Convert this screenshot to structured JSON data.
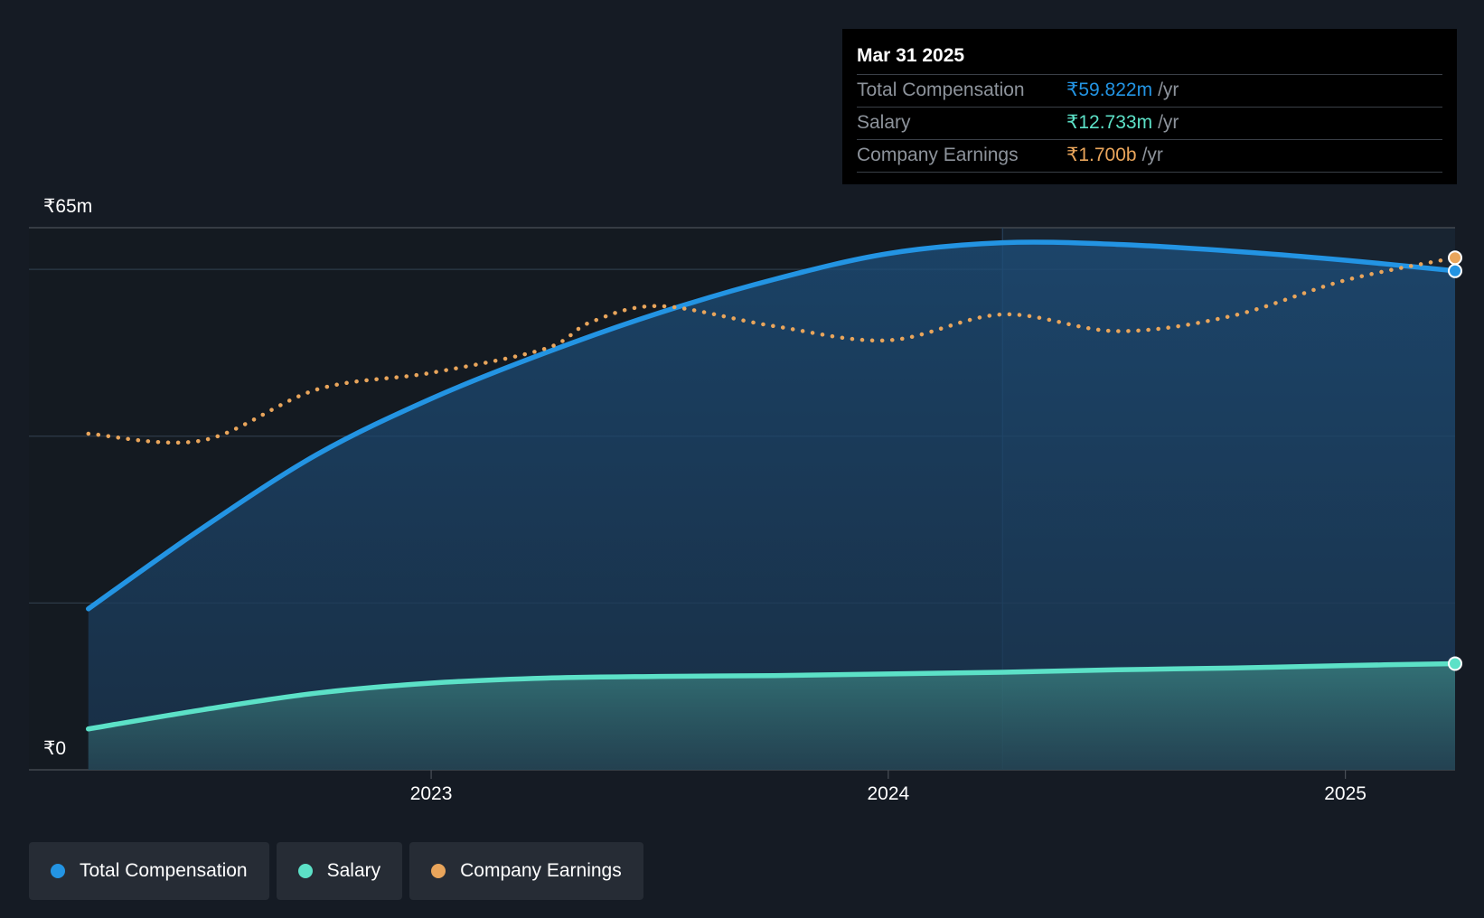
{
  "tooltip": {
    "date": "Mar 31 2025",
    "rows": [
      {
        "label": "Total Compensation",
        "value": "₹59.822m",
        "unit": "/yr",
        "color": "#2394e3"
      },
      {
        "label": "Salary",
        "value": "₹12.733m",
        "unit": "/yr",
        "color": "#5ce1c7"
      },
      {
        "label": "Company Earnings",
        "value": "₹1.700b",
        "unit": "/yr",
        "color": "#e9a55b"
      }
    ]
  },
  "legend": [
    {
      "label": "Total Compensation",
      "color": "#2394e3"
    },
    {
      "label": "Salary",
      "color": "#5ce1c7"
    },
    {
      "label": "Company Earnings",
      "color": "#e9a55b"
    }
  ],
  "chart_data": {
    "type": "line",
    "y_top_label": "₹65m",
    "y_bottom_label": "₹0",
    "ylim": [
      0,
      65
    ],
    "xlim": [
      2022.12,
      2025.24
    ],
    "x_ticks": [
      {
        "label": "2023",
        "value": 2023.0
      },
      {
        "label": "2024",
        "value": 2024.0
      },
      {
        "label": "2025",
        "value": 2025.0
      }
    ],
    "highlight_start_x": 2024.25,
    "series": [
      {
        "name": "Total Compensation",
        "color": "#2394e3",
        "fill": true,
        "style": "solid",
        "end_marker": true,
        "x": [
          2022.25,
          2022.5,
          2022.75,
          2023.0,
          2023.25,
          2023.5,
          2023.75,
          2024.0,
          2024.25,
          2024.5,
          2024.75,
          2025.0,
          2025.24
        ],
        "y": [
          19.3,
          29.0,
          37.8,
          44.5,
          50.0,
          54.8,
          58.8,
          61.9,
          63.2,
          63.0,
          62.2,
          61.1,
          59.822
        ]
      },
      {
        "name": "Salary",
        "color": "#5ce1c7",
        "fill": true,
        "style": "solid",
        "end_marker": true,
        "x": [
          2022.25,
          2022.5,
          2022.75,
          2023.0,
          2023.25,
          2023.5,
          2023.75,
          2024.0,
          2024.25,
          2024.5,
          2024.75,
          2025.0,
          2025.24
        ],
        "y": [
          4.9,
          7.2,
          9.2,
          10.4,
          11.0,
          11.2,
          11.3,
          11.5,
          11.7,
          12.0,
          12.2,
          12.5,
          12.733
        ]
      },
      {
        "name": "Company Earnings",
        "color": "#e9a55b",
        "fill": false,
        "style": "dotted",
        "end_marker": true,
        "x": [
          2022.25,
          2022.5,
          2022.75,
          2023.0,
          2023.25,
          2023.35,
          2023.5,
          2023.75,
          2024.0,
          2024.25,
          2024.5,
          2024.75,
          2025.0,
          2025.24
        ],
        "y": [
          40.3,
          39.5,
          45.6,
          47.6,
          50.5,
          53.7,
          55.6,
          53.2,
          51.5,
          54.6,
          52.6,
          54.4,
          58.7,
          61.4
        ]
      }
    ]
  }
}
